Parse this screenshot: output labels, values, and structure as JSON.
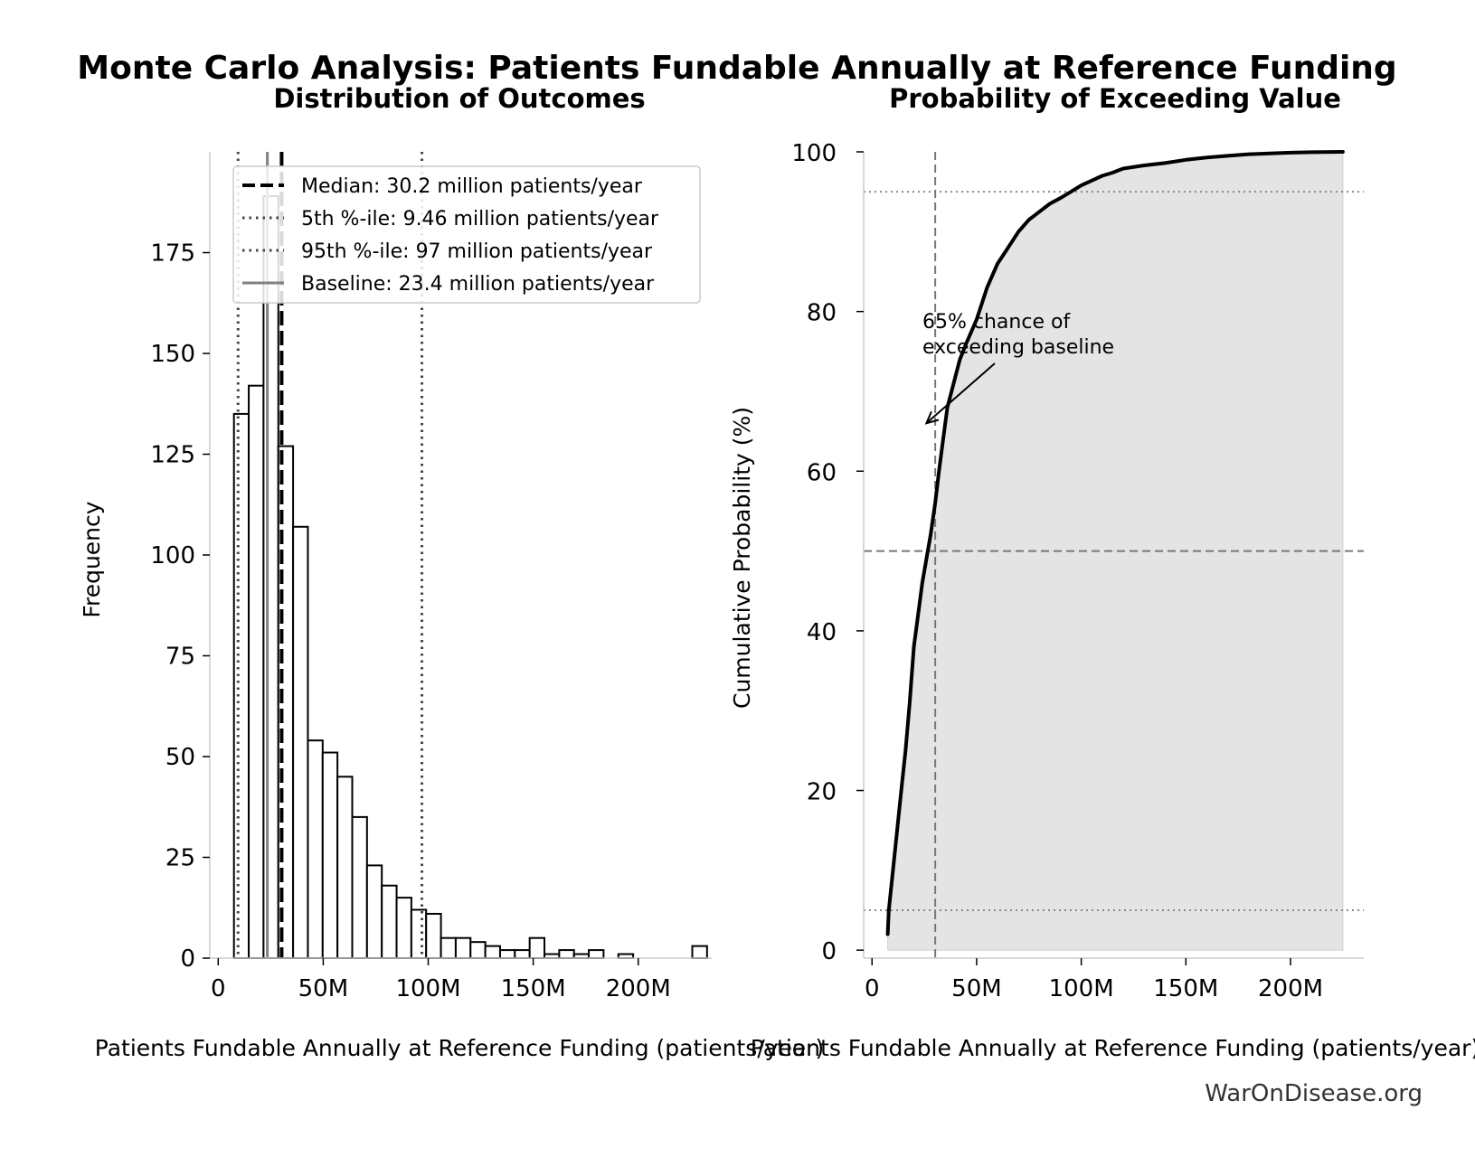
{
  "figure": {
    "title": "Monte Carlo Analysis: Patients Fundable Annually at Reference Funding",
    "credit": "WarOnDisease.org"
  },
  "colors": {
    "bar_fill": "#ffffff",
    "bar_edge": "#000000",
    "median": "#000000",
    "percentile": "#444444",
    "baseline": "#808080",
    "cdf_line": "#000000",
    "cdf_fill": "#e4e4e4",
    "ref_line": "#777777"
  },
  "chart_data": [
    {
      "type": "bar",
      "title": "Distribution of Outcomes",
      "xlabel": "Patients Fundable Annually at Reference Funding (patients/year)",
      "ylabel": "Frequency",
      "xlim": [
        -4000000,
        235000000
      ],
      "ylim": [
        0,
        200
      ],
      "xticks": [
        0,
        50000000,
        100000000,
        150000000,
        200000000
      ],
      "xtick_labels": [
        "0",
        "50M",
        "100M",
        "150M",
        "200M"
      ],
      "yticks": [
        0,
        25,
        50,
        75,
        100,
        125,
        150,
        175
      ],
      "ytick_labels": [
        "0",
        "25",
        "50",
        "75",
        "100",
        "125",
        "150",
        "175"
      ],
      "bin_start": 7500000,
      "bin_width": 7040000,
      "values": [
        135,
        142,
        189,
        127,
        107,
        54,
        51,
        45,
        35,
        23,
        18,
        15,
        12,
        11,
        5,
        5,
        4,
        3,
        2,
        2,
        5,
        1,
        2,
        1,
        2,
        0,
        1,
        0,
        0,
        0,
        0,
        3
      ],
      "grid": false,
      "legend_position": "upper right",
      "reference_lines": [
        {
          "name": "median",
          "value": 30200000,
          "style": "dashed",
          "label": "Median: 30.2 million patients/year"
        },
        {
          "name": "p5",
          "value": 9460000,
          "style": "dotted",
          "label": "5th %-ile: 9.46 million patients/year"
        },
        {
          "name": "p95",
          "value": 97000000,
          "style": "dotted",
          "label": "95th %-ile: 97 million patients/year"
        },
        {
          "name": "baseline",
          "value": 23400000,
          "style": "solid",
          "label": "Baseline: 23.4 million patients/year"
        }
      ]
    },
    {
      "type": "area",
      "title": "Probability of Exceeding Value",
      "xlabel": "Patients Fundable Annually at Reference Funding (patients/year)",
      "ylabel": "Cumulative Probability (%)",
      "xlim": [
        -4000000,
        235000000
      ],
      "ylim": [
        -1,
        100
      ],
      "xticks": [
        0,
        50000000,
        100000000,
        150000000,
        200000000
      ],
      "xtick_labels": [
        "0",
        "50M",
        "100M",
        "150M",
        "200M"
      ],
      "yticks": [
        0,
        20,
        40,
        60,
        80,
        100
      ],
      "ytick_labels": [
        "0",
        "20",
        "40",
        "60",
        "80",
        "100"
      ],
      "grid": false,
      "x": [
        7500000,
        8000000,
        10000000,
        12000000,
        14000000,
        16000000,
        18000000,
        20000000,
        22000000,
        24000000,
        26000000,
        28000000,
        30200000,
        32000000,
        34000000,
        36000000,
        38000000,
        40000000,
        42000000,
        45000000,
        50000000,
        55000000,
        60000000,
        65000000,
        70000000,
        75000000,
        80000000,
        85000000,
        90000000,
        95000000,
        100000000,
        105000000,
        110000000,
        115000000,
        120000000,
        130000000,
        140000000,
        150000000,
        160000000,
        170000000,
        180000000,
        190000000,
        200000000,
        210000000,
        225000000
      ],
      "y": [
        2,
        5,
        10,
        15,
        20,
        25,
        31,
        38,
        42,
        46,
        49,
        52,
        56,
        60,
        64,
        68,
        70,
        72,
        74,
        76,
        79,
        83,
        86,
        88,
        90,
        91.5,
        92.5,
        93.5,
        94.2,
        95,
        95.8,
        96.4,
        97,
        97.4,
        97.9,
        98.3,
        98.6,
        99,
        99.3,
        99.5,
        99.7,
        99.8,
        99.9,
        99.95,
        100
      ],
      "reference_lines": [
        {
          "name": "p5",
          "axis": "y",
          "value": 5,
          "style": "dotted"
        },
        {
          "name": "median",
          "axis": "y",
          "value": 50,
          "style": "dashed"
        },
        {
          "name": "p95",
          "axis": "y",
          "value": 95,
          "style": "dotted"
        },
        {
          "name": "median-x",
          "axis": "x",
          "value": 30200000,
          "style": "dashed"
        }
      ],
      "annotation": {
        "lines": [
          "65% chance of",
          "exceeding baseline"
        ],
        "arrow_target": {
          "x": 26000000,
          "y": 66
        }
      }
    }
  ]
}
